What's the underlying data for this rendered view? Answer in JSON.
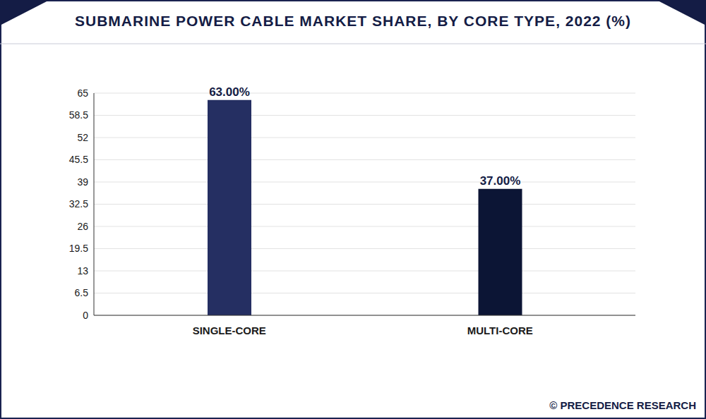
{
  "chart_data": {
    "type": "bar",
    "title": "SUBMARINE POWER CABLE MARKET SHARE, BY CORE TYPE, 2022 (%)",
    "categories": [
      "SINGLE-CORE",
      "MULTI-CORE"
    ],
    "values": [
      63,
      37
    ],
    "value_labels": [
      "63.00%",
      "37.00%"
    ],
    "colors": [
      "#252f62",
      "#0c1535"
    ],
    "ylim": [
      0,
      65
    ],
    "yticks": [
      0,
      6.5,
      13,
      19.5,
      26,
      32.5,
      39,
      45.5,
      52,
      58.5,
      65
    ],
    "grid": true,
    "data_labels": true,
    "source": "© PRECEDENCE RESEARCH"
  }
}
